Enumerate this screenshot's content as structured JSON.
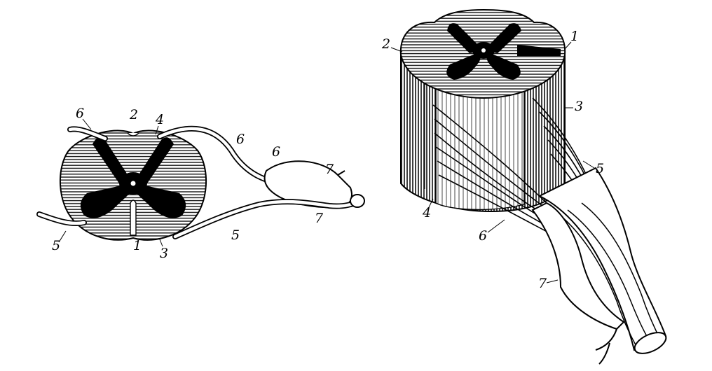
{
  "left_figure": {
    "labels": [
      "6",
      "2",
      "4",
      "6",
      "6",
      "7",
      "7",
      "5",
      "1",
      "3",
      "5"
    ]
  },
  "right_figure": {
    "labels": [
      "2",
      "1",
      "3",
      "5",
      "4",
      "6",
      "7"
    ]
  }
}
